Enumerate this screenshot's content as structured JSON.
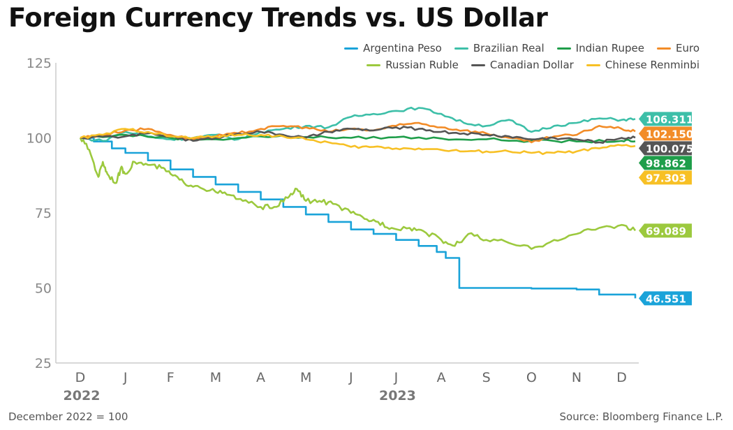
{
  "title": "Foreign Currency Trends vs. US Dollar",
  "note": "December 2022 = 100",
  "source": "Source: Bloomberg Finance L.P.",
  "chart_data": {
    "type": "line",
    "ylim": [
      25,
      125
    ],
    "yticks": [
      25,
      50,
      75,
      100,
      125
    ],
    "xlim": [
      0,
      12.3
    ],
    "month_ticks": [
      "D",
      "J",
      "F",
      "M",
      "A",
      "M",
      "J",
      "J",
      "A",
      "S",
      "O",
      "N",
      "D"
    ],
    "year_labels": [
      {
        "label": "2022",
        "at": 0
      },
      {
        "label": "2023",
        "at": 7
      }
    ],
    "grid": false,
    "legend_position": "top-right",
    "series": [
      {
        "name": "Argentina Peso",
        "color": "#1aa3d9",
        "end_label": "46.551",
        "label_value": 46.551,
        "step": true,
        "x": [
          0,
          0.3,
          0.7,
          1.0,
          1.5,
          2.0,
          2.5,
          3.0,
          3.5,
          4.0,
          4.5,
          5.0,
          5.5,
          6.0,
          6.5,
          7.0,
          7.5,
          7.9,
          8.1,
          8.4,
          9.0,
          10.0,
          11.0,
          11.5,
          12.3
        ],
        "values": [
          100,
          98.8,
          96.5,
          95.0,
          92.5,
          89.5,
          87.0,
          84.5,
          82.0,
          79.5,
          77.0,
          74.5,
          72.0,
          69.5,
          68.0,
          66.0,
          64.0,
          62.0,
          60.0,
          50.0,
          50.0,
          49.8,
          49.5,
          47.8,
          46.55
        ]
      },
      {
        "name": "Brazilian Real",
        "color": "#3dbfa8",
        "end_label": "106.311",
        "label_value": 106.311,
        "x": [
          0,
          0.5,
          1.0,
          1.5,
          2.0,
          2.5,
          3.0,
          3.5,
          4.0,
          4.5,
          5.0,
          5.5,
          6.0,
          6.5,
          7.0,
          7.5,
          8.0,
          8.5,
          9.0,
          9.5,
          10.0,
          10.5,
          11.0,
          11.5,
          12.0,
          12.3
        ],
        "values": [
          100,
          99.0,
          102.0,
          100.5,
          99.5,
          100.0,
          101.0,
          99.5,
          102.0,
          103.0,
          104.0,
          103.5,
          107.0,
          108.0,
          109.0,
          110.0,
          108.0,
          105.0,
          104.0,
          106.0,
          102.0,
          104.0,
          105.0,
          106.5,
          106.0,
          106.31
        ]
      },
      {
        "name": "Indian Rupee",
        "color": "#1f9e4a",
        "end_label": "98.862",
        "label_value": 98.862,
        "x": [
          0,
          1,
          2,
          3,
          4,
          5,
          6,
          7,
          8,
          9,
          10,
          11,
          12,
          12.3
        ],
        "values": [
          100,
          101.0,
          100.0,
          99.5,
          100.5,
          100.3,
          100.0,
          100.2,
          99.8,
          99.5,
          99.0,
          98.8,
          99.0,
          98.86
        ]
      },
      {
        "name": "Euro",
        "color": "#f28c28",
        "end_label": "102.150",
        "label_value": 102.15,
        "x": [
          0,
          0.5,
          1.0,
          1.5,
          2.0,
          2.5,
          3.0,
          3.5,
          4.0,
          4.5,
          5.0,
          5.5,
          6.0,
          6.5,
          7.0,
          7.5,
          8.0,
          8.5,
          9.0,
          9.5,
          10.0,
          10.5,
          11.0,
          11.5,
          12.0,
          12.3
        ],
        "values": [
          100,
          101.0,
          102.5,
          103.0,
          101.0,
          99.5,
          100.5,
          101.5,
          103.0,
          104.0,
          103.5,
          102.0,
          103.0,
          102.5,
          104.0,
          105.0,
          103.5,
          102.5,
          101.5,
          100.0,
          98.5,
          100.5,
          101.0,
          104.0,
          103.0,
          102.15
        ]
      },
      {
        "name": "Russian Ruble",
        "color": "#9cc93e",
        "end_label": "69.089",
        "label_value": 69.089,
        "x": [
          0,
          0.2,
          0.4,
          0.5,
          0.6,
          0.8,
          0.9,
          1.0,
          1.2,
          1.5,
          1.8,
          2.0,
          2.3,
          2.6,
          3.0,
          3.3,
          3.6,
          4.0,
          4.3,
          4.6,
          4.8,
          5.0,
          5.3,
          5.6,
          6.0,
          6.3,
          6.6,
          6.9,
          7.3,
          7.6,
          8.0,
          8.3,
          8.6,
          9.0,
          9.5,
          10.0,
          10.5,
          11.0,
          11.5,
          12.0,
          12.3
        ],
        "values": [
          100,
          96,
          87,
          92,
          88,
          85,
          90,
          88,
          92,
          91,
          90,
          88,
          85,
          84,
          82,
          81,
          79,
          77,
          77,
          80,
          83,
          79,
          79,
          78,
          75,
          73,
          72,
          70,
          70,
          69,
          66,
          64,
          68,
          66,
          65,
          63,
          66,
          68,
          70,
          71,
          69.09
        ]
      },
      {
        "name": "Canadian Dollar",
        "color": "#555555",
        "end_label": "100.075",
        "label_value": 100.075,
        "x": [
          0,
          1,
          1.5,
          2,
          2.5,
          3,
          3.5,
          4,
          4.5,
          5,
          5.5,
          6,
          6.5,
          7,
          7.5,
          8,
          8.5,
          9,
          9.5,
          10,
          10.5,
          11,
          11.5,
          12,
          12.3
        ],
        "values": [
          100,
          100.5,
          101.5,
          100.5,
          99.0,
          100.0,
          101.5,
          102.0,
          101.0,
          100.0,
          102.0,
          103.0,
          102.5,
          103.5,
          103.0,
          102.0,
          101.5,
          101.0,
          100.5,
          99.5,
          100.0,
          99.5,
          98.5,
          100.0,
          100.08
        ]
      },
      {
        "name": "Chinese Renminbi",
        "color": "#f7c025",
        "end_label": "97.303",
        "label_value": 97.303,
        "x": [
          0,
          0.5,
          1.0,
          1.5,
          2.0,
          2.5,
          3.0,
          3.5,
          4.0,
          4.5,
          5.0,
          5.5,
          6.0,
          6.5,
          7.0,
          7.5,
          8.0,
          8.5,
          9.0,
          9.5,
          10.0,
          10.5,
          11.0,
          11.5,
          12.0,
          12.3
        ],
        "values": [
          100,
          101.0,
          103.0,
          102.0,
          100.5,
          100.0,
          100.5,
          101.0,
          101.0,
          100.5,
          99.5,
          98.5,
          97.0,
          97.0,
          96.5,
          96.5,
          96.0,
          95.5,
          95.5,
          95.5,
          95.0,
          95.0,
          95.5,
          96.5,
          97.5,
          97.3
        ]
      }
    ]
  }
}
